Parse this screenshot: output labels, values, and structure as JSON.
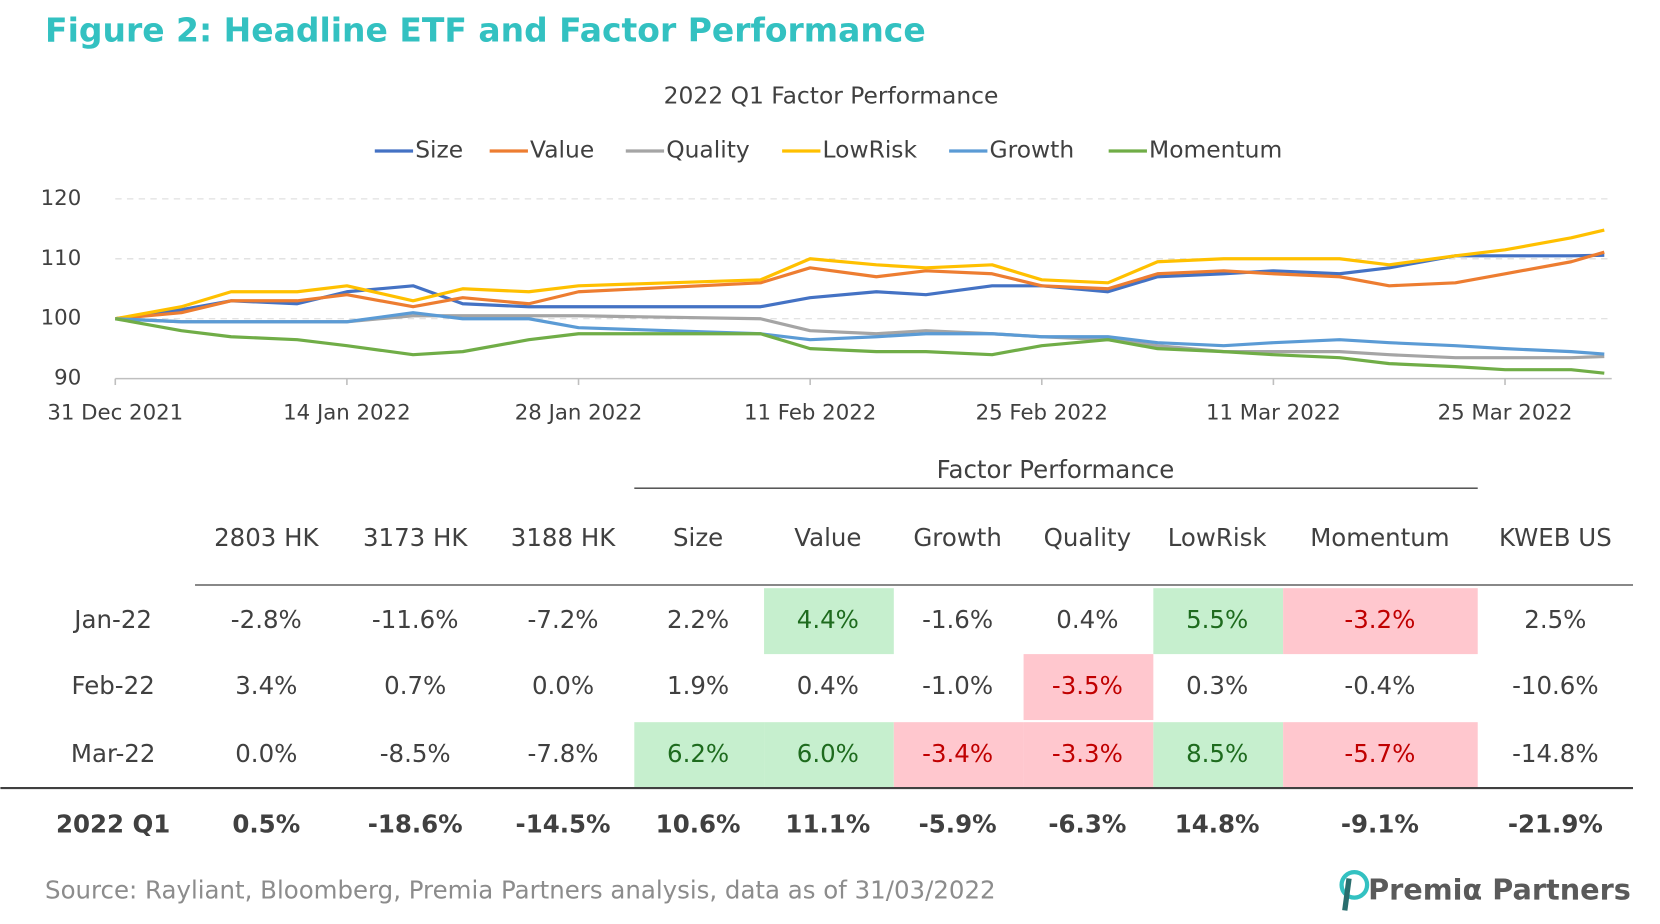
{
  "header": {
    "title": "Figure 2: Headline ETF and Factor Performance"
  },
  "chart_data": {
    "type": "line",
    "title": "2022 Q1 Factor Performance",
    "x": [
      "2021-12-31",
      "2022-01-04",
      "2022-01-07",
      "2022-01-11",
      "2022-01-14",
      "2022-01-18",
      "2022-01-21",
      "2022-01-25",
      "2022-01-28",
      "2022-02-08",
      "2022-02-11",
      "2022-02-15",
      "2022-02-18",
      "2022-02-22",
      "2022-02-25",
      "2022-03-01",
      "2022-03-04",
      "2022-03-08",
      "2022-03-11",
      "2022-03-15",
      "2022-03-18",
      "2022-03-22",
      "2022-03-25",
      "2022-03-29",
      "2022-03-31"
    ],
    "xlim": [
      "2021-12-31",
      "2022-03-31"
    ],
    "xticks": [
      {
        "value": "2021-12-31",
        "label": "31 Dec 2021"
      },
      {
        "value": "2022-01-14",
        "label": "14 Jan 2022"
      },
      {
        "value": "2022-01-28",
        "label": "28 Jan 2022"
      },
      {
        "value": "2022-02-11",
        "label": "11 Feb 2022"
      },
      {
        "value": "2022-02-25",
        "label": "25 Feb 2022"
      },
      {
        "value": "2022-03-11",
        "label": "11 Mar 2022"
      },
      {
        "value": "2022-03-25",
        "label": "25 Mar 2022"
      }
    ],
    "ylim": [
      90,
      120
    ],
    "yticks": [
      90,
      100,
      110,
      120
    ],
    "grid": true,
    "legend": "top",
    "series": [
      {
        "name": "Size",
        "color": "#4472c4",
        "values": [
          100,
          101.5,
          103,
          102.5,
          104.5,
          105.5,
          102.5,
          102,
          102,
          102,
          103.5,
          104.5,
          104,
          105.5,
          105.5,
          104.5,
          107,
          107.5,
          108,
          107.5,
          108.5,
          110.5,
          110.5,
          110.5,
          110.6
        ]
      },
      {
        "name": "Value",
        "color": "#ed7d31",
        "values": [
          100,
          101,
          103,
          103,
          104,
          102,
          103.5,
          102.5,
          104.5,
          106,
          108.5,
          107,
          108,
          107.5,
          105.5,
          105,
          107.5,
          108,
          107.5,
          107,
          105.5,
          106,
          107.5,
          109.5,
          111.1
        ]
      },
      {
        "name": "Quality",
        "color": "#a5a5a5",
        "values": [
          100,
          99.5,
          99.5,
          99.5,
          99.5,
          100.5,
          100.5,
          100.5,
          100.5,
          100,
          98,
          97.5,
          98,
          97.5,
          97,
          96.5,
          95.5,
          94.5,
          94.5,
          94.5,
          94,
          93.5,
          93.5,
          93.5,
          93.7
        ]
      },
      {
        "name": "LowRisk",
        "color": "#ffc000",
        "values": [
          100,
          102,
          104.5,
          104.5,
          105.5,
          103,
          105,
          104.5,
          105.5,
          106.5,
          110,
          109,
          108.5,
          109,
          106.5,
          106,
          109.5,
          110,
          110,
          110,
          109,
          110.5,
          111.5,
          113.5,
          114.8
        ]
      },
      {
        "name": "Growth",
        "color": "#5b9bd5",
        "values": [
          100,
          99.5,
          99.5,
          99.5,
          99.5,
          101,
          100,
          100,
          98.5,
          97.5,
          96.5,
          97,
          97.5,
          97.5,
          97,
          97,
          96,
          95.5,
          96,
          96.5,
          96,
          95.5,
          95,
          94.5,
          94.1
        ]
      },
      {
        "name": "Momentum",
        "color": "#70ad47",
        "values": [
          100,
          98,
          97,
          96.5,
          95.5,
          94,
          94.5,
          96.5,
          97.5,
          97.5,
          95,
          94.5,
          94.5,
          94,
          95.5,
          96.5,
          95,
          94.5,
          94,
          93.5,
          92.5,
          92,
          91.5,
          91.5,
          90.9
        ]
      }
    ]
  },
  "table": {
    "group_header": "Factor Performance",
    "columns": [
      "2803 HK",
      "3173 HK",
      "3188 HK",
      "Size",
      "Value",
      "Growth",
      "Quality",
      "LowRisk",
      "Momentum",
      "KWEB US"
    ],
    "rows": [
      {
        "label": "Jan-22",
        "cells": [
          "-2.8%",
          "-11.6%",
          "-7.2%",
          "2.2%",
          "4.4%",
          "-1.6%",
          "0.4%",
          "5.5%",
          "-3.2%",
          "2.5%"
        ],
        "highlight": [
          null,
          null,
          null,
          null,
          "#c6efce",
          null,
          null,
          "#c6efce",
          "#ffc7ce",
          null
        ]
      },
      {
        "label": "Feb-22",
        "cells": [
          "3.4%",
          "0.7%",
          "0.0%",
          "1.9%",
          "0.4%",
          "-1.0%",
          "-3.5%",
          "0.3%",
          "-0.4%",
          "-10.6%"
        ],
        "highlight": [
          null,
          null,
          null,
          null,
          null,
          null,
          "#ffc7ce",
          null,
          null,
          null
        ]
      },
      {
        "label": "Mar-22",
        "cells": [
          "0.0%",
          "-8.5%",
          "-7.8%",
          "6.2%",
          "6.0%",
          "-3.4%",
          "-3.3%",
          "8.5%",
          "-5.7%",
          "-14.8%"
        ],
        "highlight": [
          null,
          null,
          null,
          "#c6efce",
          "#c6efce",
          "#ffc7ce",
          "#ffc7ce",
          "#c6efce",
          "#ffc7ce",
          null
        ]
      }
    ],
    "total": {
      "label": "2022 Q1",
      "cells": [
        "0.5%",
        "-18.6%",
        "-14.5%",
        "10.6%",
        "11.1%",
        "-5.9%",
        "-6.3%",
        "14.8%",
        "-9.1%",
        "-21.9%"
      ]
    }
  },
  "footer": {
    "source": "Source: Rayliant, Bloomberg, Premia Partners analysis, data as of 31/03/2022",
    "logo": "Premiα Partners"
  }
}
